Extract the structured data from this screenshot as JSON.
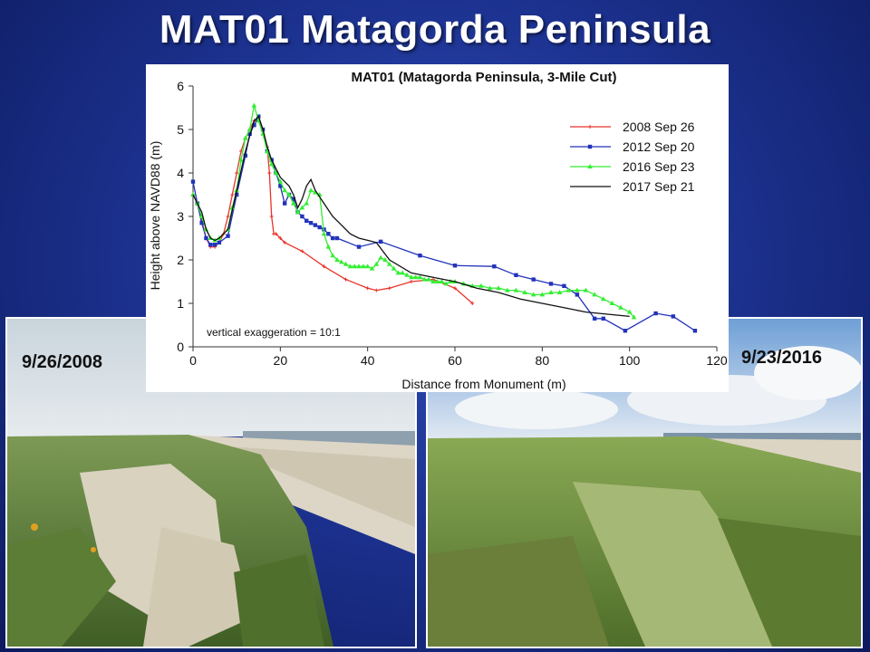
{
  "slide": {
    "title": "MAT01 Matagorda Peninsula"
  },
  "photos": {
    "left": {
      "date": "9/26/2008",
      "scene": "dune-2008"
    },
    "right": {
      "date": "9/23/2016",
      "scene": "dune-2016"
    }
  },
  "colors": {
    "background": "#1d3392",
    "series_2008": "#e8332a",
    "series_2012": "#2233bb",
    "series_2016": "#33ee33",
    "series_2017": "#111111"
  },
  "chart_data": {
    "type": "line",
    "title": "MAT01 (Matagorda Peninsula, 3-Mile Cut)",
    "xlabel": "Distance from Monument (m)",
    "ylabel": "Height above NAVD88 (m)",
    "xlim": [
      0,
      120
    ],
    "ylim": [
      0,
      6
    ],
    "xticks": [
      0,
      20,
      40,
      60,
      80,
      100,
      120
    ],
    "yticks": [
      0,
      1,
      2,
      3,
      4,
      5,
      6
    ],
    "grid": false,
    "legend_position": "top-right",
    "annotation": "vertical exaggeration = 10:1",
    "series": [
      {
        "name": "2008 Sep 26",
        "color": "#e8332a",
        "marker": "plus",
        "x": [
          0,
          1,
          2,
          3,
          4,
          5,
          6,
          7,
          8,
          9,
          10,
          11,
          12,
          13,
          14,
          15,
          16,
          17,
          17.5,
          18,
          18.5,
          19,
          20,
          21,
          25,
          30,
          35,
          40,
          42,
          45,
          50,
          55,
          60,
          64
        ],
        "y": [
          3.5,
          3.3,
          2.9,
          2.5,
          2.3,
          2.3,
          2.4,
          2.6,
          3.0,
          3.5,
          4.0,
          4.5,
          4.8,
          5.0,
          5.2,
          5.2,
          5.0,
          4.6,
          4.0,
          3.0,
          2.6,
          2.6,
          2.5,
          2.4,
          2.2,
          1.85,
          1.55,
          1.35,
          1.3,
          1.35,
          1.5,
          1.55,
          1.35,
          1.0
        ]
      },
      {
        "name": "2012 Sep 20",
        "color": "#2233bb",
        "marker": "square",
        "x": [
          0,
          1,
          2,
          3,
          4,
          5,
          6,
          8,
          10,
          12,
          13,
          14,
          15,
          16,
          17,
          18,
          19,
          20,
          21,
          22,
          23,
          24,
          25,
          26,
          27,
          28,
          29,
          30,
          31,
          32,
          33,
          38,
          43,
          52,
          60,
          69,
          74,
          78,
          82,
          85,
          88,
          92,
          94,
          99,
          106,
          110,
          115
        ],
        "y": [
          3.8,
          3.3,
          2.85,
          2.5,
          2.35,
          2.35,
          2.4,
          2.55,
          3.5,
          4.4,
          4.9,
          5.1,
          5.3,
          5.0,
          4.5,
          4.3,
          4.0,
          3.7,
          3.3,
          3.5,
          3.4,
          3.1,
          3.0,
          2.9,
          2.85,
          2.8,
          2.75,
          2.7,
          2.6,
          2.5,
          2.5,
          2.3,
          2.42,
          2.1,
          1.87,
          1.85,
          1.65,
          1.55,
          1.45,
          1.4,
          1.2,
          0.65,
          0.65,
          0.37,
          0.77,
          0.7,
          0.37
        ]
      },
      {
        "name": "2016 Sep 23",
        "color": "#33ee33",
        "marker": "triangle",
        "x": [
          0,
          1,
          2,
          3,
          4,
          5,
          6,
          8,
          9,
          10,
          11,
          12,
          13,
          14,
          15,
          16,
          17,
          18,
          19,
          20,
          21,
          22,
          23,
          24,
          25,
          26,
          27,
          28,
          29,
          30,
          31,
          32,
          33,
          34,
          35,
          36,
          37,
          38,
          39,
          40,
          41,
          42,
          43,
          44,
          45,
          46,
          47,
          48,
          49,
          50,
          51,
          52,
          53,
          54,
          55,
          56,
          57,
          58,
          59,
          60,
          62,
          64,
          66,
          68,
          70,
          72,
          74,
          76,
          78,
          80,
          82,
          84,
          86,
          88,
          90,
          92,
          94,
          96,
          98,
          100,
          101
        ],
        "y": [
          3.5,
          3.3,
          3.0,
          2.7,
          2.5,
          2.45,
          2.5,
          2.7,
          3.2,
          3.6,
          4.3,
          4.8,
          5.0,
          5.55,
          5.2,
          4.9,
          4.5,
          4.2,
          4.0,
          3.8,
          3.6,
          3.5,
          3.3,
          3.1,
          3.2,
          3.3,
          3.6,
          3.55,
          3.5,
          2.6,
          2.3,
          2.1,
          2.0,
          1.95,
          1.9,
          1.85,
          1.85,
          1.85,
          1.85,
          1.85,
          1.8,
          1.9,
          2.05,
          2.0,
          1.9,
          1.8,
          1.7,
          1.7,
          1.65,
          1.6,
          1.6,
          1.6,
          1.55,
          1.55,
          1.5,
          1.5,
          1.5,
          1.45,
          1.5,
          1.5,
          1.45,
          1.4,
          1.4,
          1.35,
          1.35,
          1.3,
          1.3,
          1.25,
          1.2,
          1.2,
          1.25,
          1.25,
          1.3,
          1.3,
          1.3,
          1.2,
          1.1,
          1.0,
          0.9,
          0.8,
          0.68
        ]
      },
      {
        "name": "2017 Sep 21",
        "color": "#111111",
        "marker": "none",
        "x": [
          0,
          2,
          3,
          4,
          5,
          6,
          8,
          10,
          12,
          14,
          15,
          16,
          17,
          18,
          19,
          20,
          22,
          23,
          24,
          25,
          26,
          27,
          28,
          30,
          32,
          34,
          36,
          38,
          40,
          42,
          45,
          50,
          55,
          60,
          65,
          70,
          75,
          80,
          85,
          90,
          95,
          100
        ],
        "y": [
          3.5,
          3.1,
          2.7,
          2.5,
          2.45,
          2.5,
          2.7,
          3.6,
          4.5,
          5.2,
          5.3,
          5.0,
          4.6,
          4.3,
          4.1,
          3.9,
          3.7,
          3.5,
          3.2,
          3.4,
          3.7,
          3.85,
          3.6,
          3.3,
          3.0,
          2.8,
          2.6,
          2.5,
          2.45,
          2.4,
          2.0,
          1.7,
          1.6,
          1.5,
          1.35,
          1.25,
          1.1,
          1.0,
          0.9,
          0.8,
          0.75,
          0.7
        ]
      }
    ]
  }
}
